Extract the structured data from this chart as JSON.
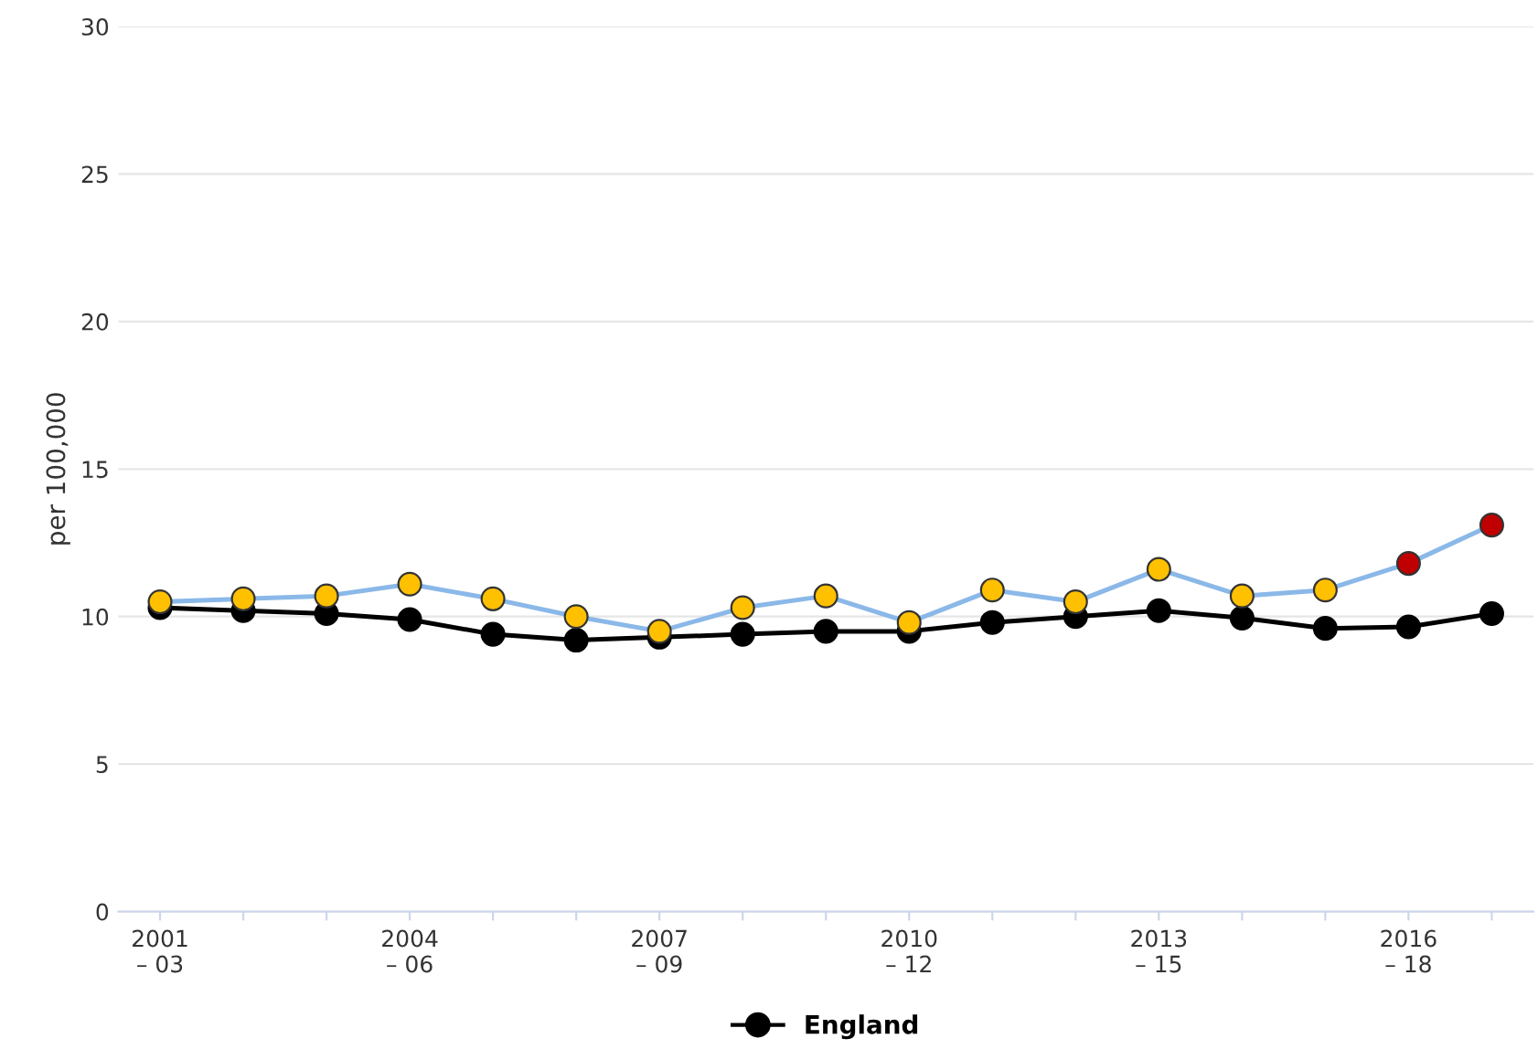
{
  "chart_data": {
    "type": "line",
    "ylabel": "per 100,000",
    "categories": [
      "2001\n– 03",
      null,
      null,
      "2004\n– 06",
      null,
      null,
      "2007\n– 09",
      null,
      null,
      "2010\n– 12",
      null,
      null,
      "2013\n– 15",
      null,
      null,
      "2016\n– 18",
      null
    ],
    "series": [
      {
        "color": "#8ab8e8",
        "colors": [
          "#ffc000",
          "#ffc000",
          "#ffc000",
          "#ffc000",
          "#ffc000",
          "#ffc000",
          "#ffc000",
          "#ffc000",
          "#ffc000",
          "#ffc000",
          "#ffc000",
          "#ffc000",
          "#ffc000",
          "#ffc000",
          "#ffc000",
          "#c00000",
          "#c00000"
        ],
        "values": [
          10.5,
          10.6,
          10.7,
          11.1,
          10.6,
          10.0,
          9.5,
          10.3,
          10.7,
          9.8,
          10.9,
          10.5,
          11.6,
          10.7,
          10.9,
          11.8,
          13.1
        ]
      },
      {
        "name": "England",
        "color": "#000000",
        "values": [
          10.3,
          10.2,
          10.1,
          9.9,
          9.4,
          9.2,
          9.3,
          9.4,
          9.5,
          9.5,
          9.8,
          10.0,
          10.2,
          9.95,
          9.6,
          9.65,
          10.1
        ]
      }
    ],
    "ylim": [
      0,
      30
    ],
    "yticks": [
      0,
      5,
      10,
      15,
      20,
      25,
      30
    ],
    "grid": "y",
    "legend": "bottom",
    "marker": "circle",
    "line_style": "solid"
  }
}
